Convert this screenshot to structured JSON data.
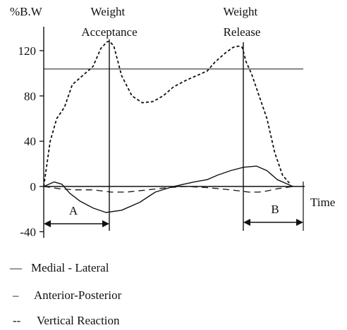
{
  "chart_data": {
    "type": "line",
    "ylabel": "%B.W",
    "xlabel": "Time",
    "ylim": [
      -40,
      130
    ],
    "yticks": [
      -40,
      0,
      40,
      80,
      120
    ],
    "reference_line": 100,
    "grid": false,
    "legend_position": "bottom-left",
    "annotations": {
      "weight_acceptance": "Weight\nAcceptance",
      "weight_release": "Weight\nRelease",
      "interval_a": "A",
      "interval_b": "B"
    },
    "series": [
      {
        "name": "Medial - Lateral",
        "style": "solid",
        "x": [
          0,
          0.04,
          0.07,
          0.1,
          0.14,
          0.19,
          0.24,
          0.3,
          0.37,
          0.43,
          0.5,
          0.58,
          0.63,
          0.67,
          0.72,
          0.77,
          0.82,
          0.86,
          0.9,
          0.96
        ],
        "y": [
          0,
          4,
          2,
          -6,
          -13,
          -19,
          -23,
          -21,
          -14,
          -5,
          0,
          4,
          6,
          10,
          14,
          17,
          18,
          14,
          6,
          0
        ]
      },
      {
        "name": "Anterior-Posterior",
        "style": "dashed",
        "x": [
          0.0,
          0.06,
          0.12,
          0.19,
          0.26,
          0.32,
          0.4,
          0.48,
          0.55,
          0.63,
          0.72,
          0.79,
          0.83,
          0.86,
          0.9,
          0.96
        ],
        "y": [
          0,
          -2,
          -3,
          -3,
          -5,
          -5,
          -3,
          -1,
          0,
          -1,
          -3,
          -5,
          -5,
          -4,
          -2,
          0
        ]
      },
      {
        "name": "Vertical Reaction",
        "style": "dotted",
        "x": [
          0.0,
          0.025,
          0.05,
          0.08,
          0.11,
          0.15,
          0.19,
          0.22,
          0.245,
          0.255,
          0.27,
          0.3,
          0.34,
          0.38,
          0.42,
          0.46,
          0.5,
          0.55,
          0.59,
          0.63,
          0.66,
          0.7,
          0.73,
          0.75,
          0.765,
          0.78,
          0.8,
          0.83,
          0.86,
          0.89,
          0.92,
          0.95
        ],
        "y": [
          0,
          40,
          60,
          70,
          90,
          98,
          106,
          122,
          128,
          128,
          124,
          98,
          80,
          74,
          75,
          80,
          88,
          94,
          98,
          102,
          110,
          118,
          123,
          124,
          123,
          110,
          100,
          80,
          60,
          30,
          10,
          2
        ]
      }
    ]
  },
  "legend": {
    "items": [
      {
        "symbol": "—",
        "label": "Medial - Lateral"
      },
      {
        "symbol": "–",
        "label": "Anterior-Posterior"
      },
      {
        "symbol": "--",
        "label": "Vertical Reaction"
      }
    ]
  }
}
